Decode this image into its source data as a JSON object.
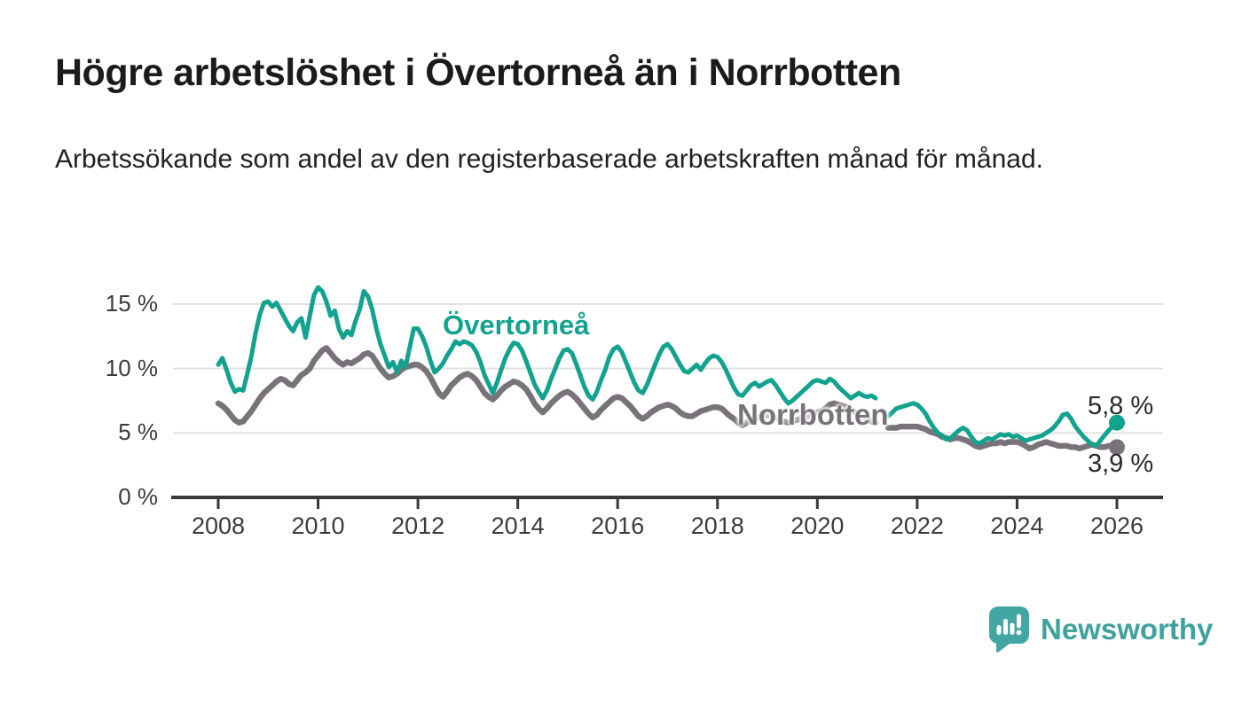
{
  "header": {
    "title": "Högre arbetslöshet i Övertorneå än i Norrbotten",
    "subtitle": "Arbetssökande som andel av den registerbaserade arbetskraften månad för månad."
  },
  "chart_data": {
    "type": "line",
    "title": "Högre arbetslöshet i Övertorneå än i Norrbotten",
    "x_start": "2008-01",
    "x_end": "2026-01",
    "frequency": "monthly",
    "x_ticks": [
      "2008",
      "2010",
      "2012",
      "2014",
      "2016",
      "2018",
      "2020",
      "2022",
      "2024",
      "2026"
    ],
    "y_ticks": [
      "0 %",
      "5 %",
      "10 %",
      "15 %"
    ],
    "y_tick_values": [
      0,
      5,
      10,
      15
    ],
    "ylim": [
      0,
      16.6
    ],
    "grid": "horizontal",
    "unit": "%",
    "data_gap": [
      "2021-04",
      "2021-05"
    ],
    "series": [
      {
        "name": "Övertorneå",
        "color": "#13a28e",
        "end_label": "5,8 %",
        "end_value": 5.8,
        "values": [
          10.3,
          10.8,
          9.9,
          8.9,
          8.2,
          8.4,
          8.3,
          9.6,
          11.0,
          12.8,
          14.2,
          15.1,
          15.2,
          14.8,
          15.1,
          14.5,
          13.9,
          13.3,
          12.9,
          13.6,
          13.9,
          12.4,
          14.1,
          15.7,
          16.3,
          16.0,
          15.2,
          14.1,
          14.5,
          13.1,
          12.4,
          12.9,
          12.6,
          13.7,
          14.6,
          16.0,
          15.6,
          14.6,
          13.1,
          11.9,
          11.0,
          10.1,
          10.5,
          9.7,
          10.6,
          10.1,
          11.6,
          13.1,
          13.1,
          12.5,
          11.7,
          10.6,
          9.7,
          10.0,
          10.4,
          11.0,
          11.5,
          12.1,
          11.9,
          12.1,
          12.0,
          11.8,
          11.3,
          10.5,
          9.5,
          8.8,
          8.1,
          8.9,
          9.9,
          10.8,
          11.5,
          12.0,
          11.9,
          11.4,
          10.6,
          9.7,
          8.8,
          8.2,
          7.7,
          8.3,
          9.2,
          10.0,
          10.8,
          11.4,
          11.5,
          11.2,
          10.4,
          9.5,
          8.6,
          7.9,
          7.6,
          8.2,
          9.1,
          9.9,
          10.9,
          11.5,
          11.7,
          11.3,
          10.5,
          9.7,
          8.9,
          8.3,
          8.1,
          8.7,
          9.5,
          10.3,
          11.1,
          11.7,
          11.9,
          11.5,
          10.9,
          10.3,
          9.8,
          9.7,
          10.0,
          10.3,
          9.9,
          10.4,
          10.8,
          11.0,
          10.9,
          10.5,
          9.9,
          9.2,
          8.5,
          8.0,
          7.9,
          8.3,
          8.7,
          8.9,
          8.6,
          8.8,
          9.0,
          9.1,
          8.7,
          8.2,
          7.7,
          7.3,
          7.5,
          7.8,
          8.1,
          8.4,
          8.7,
          9.0,
          9.1,
          9.0,
          8.9,
          9.2,
          9.0,
          8.6,
          8.3,
          8.0,
          7.7,
          7.9,
          8.1,
          7.9,
          7.8,
          7.9,
          7.7,
          null,
          null,
          6.3,
          6.6,
          6.9,
          7.0,
          7.1,
          7.2,
          7.3,
          7.2,
          6.9,
          6.5,
          5.9,
          5.4,
          5.0,
          4.8,
          4.5,
          4.6,
          4.9,
          5.2,
          5.4,
          5.2,
          4.7,
          4.3,
          4.2,
          4.4,
          4.6,
          4.5,
          4.7,
          4.9,
          4.8,
          4.9,
          4.7,
          4.8,
          4.6,
          4.4,
          4.5,
          4.6,
          4.7,
          4.8,
          5.0,
          5.2,
          5.5,
          5.9,
          6.4,
          6.5,
          6.1,
          5.5,
          5.1,
          4.7,
          4.4,
          4.1,
          4.0,
          4.4,
          4.8,
          5.2,
          5.5,
          5.8
        ]
      },
      {
        "name": "Norrbotten",
        "color": "#787379",
        "end_label": "3,9 %",
        "end_value": 3.9,
        "values": [
          7.3,
          7.1,
          6.8,
          6.4,
          6.0,
          5.8,
          5.9,
          6.3,
          6.7,
          7.2,
          7.7,
          8.1,
          8.4,
          8.7,
          9.0,
          9.2,
          9.1,
          8.8,
          8.7,
          9.1,
          9.5,
          9.7,
          10.0,
          10.6,
          11.0,
          11.4,
          11.6,
          11.2,
          10.8,
          10.5,
          10.3,
          10.5,
          10.4,
          10.6,
          10.8,
          11.1,
          11.2,
          11.0,
          10.5,
          10.0,
          9.6,
          9.3,
          9.4,
          9.6,
          9.9,
          10.1,
          10.2,
          10.3,
          10.3,
          10.1,
          9.8,
          9.3,
          8.7,
          8.1,
          7.8,
          8.2,
          8.7,
          9.0,
          9.3,
          9.5,
          9.6,
          9.4,
          9.1,
          8.6,
          8.1,
          7.8,
          7.6,
          7.9,
          8.3,
          8.6,
          8.8,
          9.0,
          8.9,
          8.7,
          8.4,
          7.9,
          7.3,
          6.9,
          6.6,
          6.9,
          7.3,
          7.6,
          7.9,
          8.1,
          8.2,
          8.0,
          7.7,
          7.3,
          6.9,
          6.5,
          6.2,
          6.4,
          6.8,
          7.1,
          7.4,
          7.7,
          7.8,
          7.7,
          7.4,
          7.1,
          6.7,
          6.3,
          6.1,
          6.3,
          6.6,
          6.8,
          7.0,
          7.1,
          7.2,
          7.1,
          6.9,
          6.6,
          6.4,
          6.3,
          6.3,
          6.5,
          6.7,
          6.8,
          6.9,
          7.0,
          7.0,
          6.9,
          6.6,
          6.3,
          6.1,
          5.8,
          5.6,
          5.8,
          6.0,
          6.1,
          6.2,
          6.3,
          6.4,
          6.3,
          6.2,
          6.0,
          5.9,
          5.8,
          5.9,
          6.0,
          6.1,
          6.2,
          6.3,
          6.5,
          6.6,
          6.7,
          6.9,
          7.2,
          7.3,
          7.2,
          7.1,
          7.0,
          6.8,
          6.6,
          6.4,
          6.2,
          6.0,
          5.9,
          5.8,
          null,
          null,
          5.4,
          5.4,
          5.4,
          5.5,
          5.5,
          5.5,
          5.5,
          5.5,
          5.4,
          5.3,
          5.1,
          5.0,
          4.9,
          4.7,
          4.6,
          4.5,
          4.6,
          4.6,
          4.5,
          4.4,
          4.2,
          4.0,
          3.9,
          4.0,
          4.1,
          4.2,
          4.2,
          4.3,
          4.2,
          4.3,
          4.3,
          4.3,
          4.2,
          4.0,
          3.8,
          3.9,
          4.1,
          4.2,
          4.3,
          4.2,
          4.1,
          4.0,
          4.0,
          4.0,
          3.9,
          3.9,
          3.8,
          3.9,
          4.0,
          4.1,
          4.0,
          3.9,
          3.9,
          4.0,
          4.0,
          3.9
        ]
      }
    ],
    "legend_position": "inline-annotations",
    "colors": {
      "axis": "#3a3a3a",
      "gridline": "#e2e2e2",
      "tick_label": "#3b3b3b"
    }
  },
  "footer": {
    "brand": "Newsworthy",
    "logo_icon": "bar-chart-speech-bubble-icon",
    "logo_color": "#43a6a2"
  }
}
